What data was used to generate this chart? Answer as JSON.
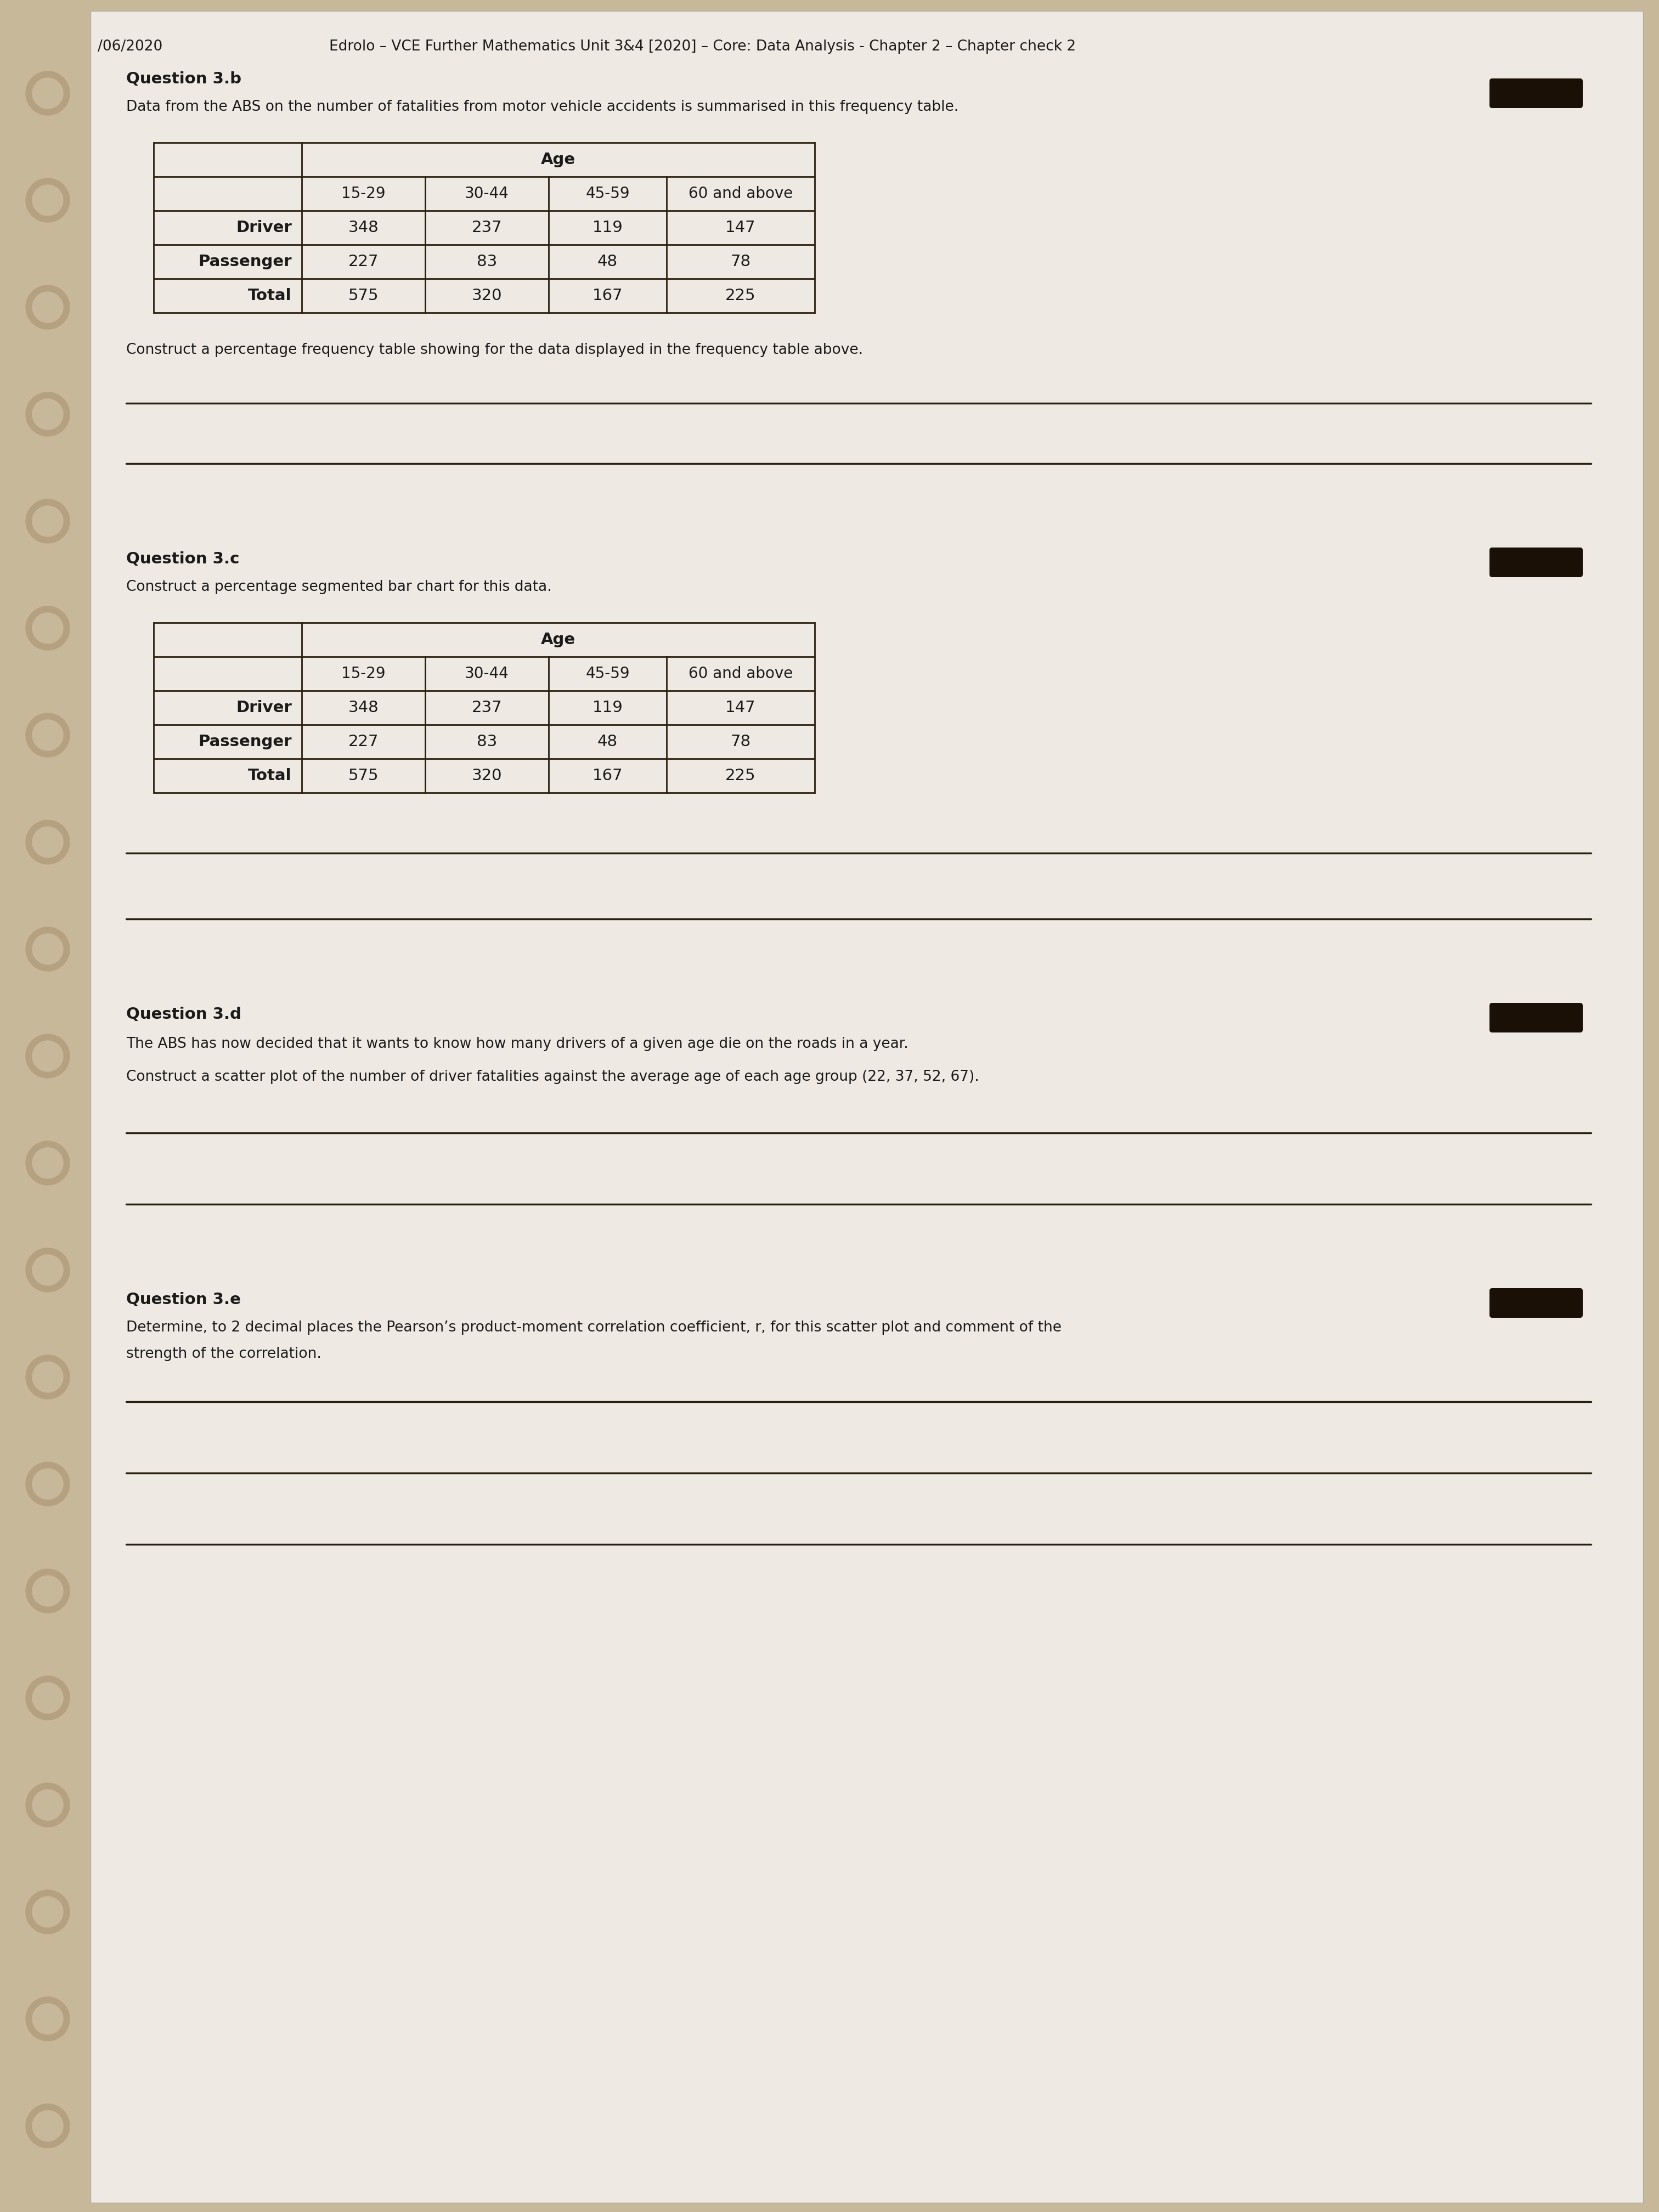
{
  "bg_color": "#c8b89a",
  "page_bg": "#eeeae3",
  "header_date": "/06/2020",
  "header_title": "Edrolo – VCE Further Mathematics Unit 3&4 [2020] – Core: Data Analysis - Chapter 2 – Chapter check 2",
  "q3b_label": "Question 3.b",
  "q3b_text": "Data from the ABS on the number of fatalities from motor vehicle accidents is summarised in this frequency table.",
  "table1_age_header": "Age",
  "table1_col_headers": [
    "15-29",
    "30-44",
    "45-59",
    "60 and above"
  ],
  "table1_row_headers": [
    "Driver",
    "Passenger",
    "Total"
  ],
  "table1_data": [
    [
      348,
      237,
      119,
      147
    ],
    [
      227,
      83,
      48,
      78
    ],
    [
      575,
      320,
      167,
      225
    ]
  ],
  "q3b_instruction": "Construct a percentage frequency table showing for the data displayed in the frequency table above.",
  "q3c_label": "Question 3.c",
  "q3c_text": "Construct a percentage segmented bar chart for this data.",
  "table2_age_header": "Age",
  "table2_col_headers": [
    "15-29",
    "30-44",
    "45-59",
    "60 and above"
  ],
  "table2_row_headers": [
    "Driver",
    "Passenger",
    "Total"
  ],
  "table2_data": [
    [
      348,
      237,
      119,
      147
    ],
    [
      227,
      83,
      48,
      78
    ],
    [
      575,
      320,
      167,
      225
    ]
  ],
  "q3d_label": "Question 3.d",
  "q3d_text1": "The ABS has now decided that it wants to know how many drivers of a given age die on the roads in a year.",
  "q3d_text2": "Construct a scatter plot of the number of driver fatalities against the average age of each age group (22, 37, 52, 67).",
  "q3e_label": "Question 3.e",
  "q3e_line1": "Determine, to 2 decimal places the Pearson’s product-moment correlation coefficient, r, for this scatter plot and comment of the",
  "q3e_line2": "strength of the correlation.",
  "line_color": "#2a2010",
  "text_color": "#1a1a1a",
  "table_border_color": "#2a2010",
  "sticker_color": "#1a1005",
  "hole_outer_color": "#b5a080",
  "hole_inner_color": "#c8b89a"
}
